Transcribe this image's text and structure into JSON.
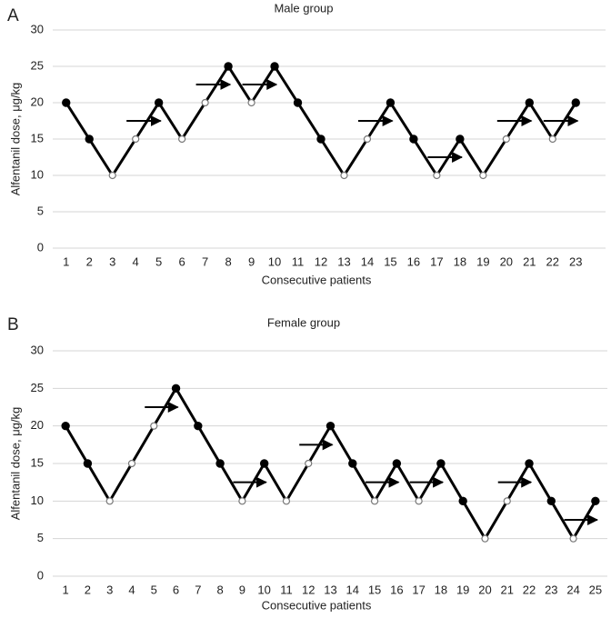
{
  "chart_data": [
    {
      "type": "line",
      "label": "A",
      "title": "Male group",
      "x_label": "Consecutive patients",
      "y_label": "Alfentanil dose, μg/kg",
      "categories": [
        "1",
        "2",
        "3",
        "4",
        "5",
        "6",
        "7",
        "8",
        "9",
        "10",
        "11",
        "12",
        "13",
        "14",
        "15",
        "16",
        "17",
        "18",
        "19",
        "20",
        "21",
        "22",
        "23"
      ],
      "values": [
        20,
        15,
        10,
        15,
        20,
        15,
        20,
        25,
        20,
        25,
        20,
        15,
        10,
        15,
        20,
        15,
        10,
        15,
        10,
        15,
        20,
        15,
        20
      ],
      "markers": [
        "filled",
        "filled",
        "open",
        "open",
        "filled",
        "open",
        "open",
        "filled",
        "open",
        "filled",
        "filled",
        "filled",
        "open",
        "open",
        "filled",
        "filled",
        "open",
        "filled",
        "open",
        "open",
        "filled",
        "open",
        "filled"
      ],
      "color": "#000000",
      "ylim": [
        0,
        30
      ],
      "yticks": [
        0,
        5,
        10,
        15,
        20,
        25,
        30
      ],
      "grid": true
    },
    {
      "type": "line",
      "label": "B",
      "title": "Female group",
      "x_label": "Consecutive patients",
      "y_label": "Alfentanil dose, μg/kg",
      "categories": [
        "1",
        "2",
        "3",
        "4",
        "5",
        "6",
        "7",
        "8",
        "9",
        "10",
        "11",
        "12",
        "13",
        "14",
        "15",
        "16",
        "17",
        "18",
        "19",
        "20",
        "21",
        "22",
        "23",
        "24",
        "25"
      ],
      "values": [
        20,
        15,
        10,
        15,
        20,
        25,
        20,
        15,
        10,
        15,
        10,
        15,
        20,
        15,
        10,
        15,
        10,
        15,
        10,
        5,
        10,
        15,
        10,
        5,
        10
      ],
      "markers": [
        "filled",
        "filled",
        "open",
        "open",
        "open",
        "filled",
        "filled",
        "filled",
        "open",
        "filled",
        "open",
        "open",
        "filled",
        "filled",
        "open",
        "filled",
        "open",
        "filled",
        "filled",
        "open",
        "open",
        "filled",
        "filled",
        "open",
        "filled"
      ],
      "color": "#000000",
      "ylim": [
        0,
        30
      ],
      "yticks": [
        0,
        5,
        10,
        15,
        20,
        25,
        30
      ],
      "grid": true
    }
  ]
}
